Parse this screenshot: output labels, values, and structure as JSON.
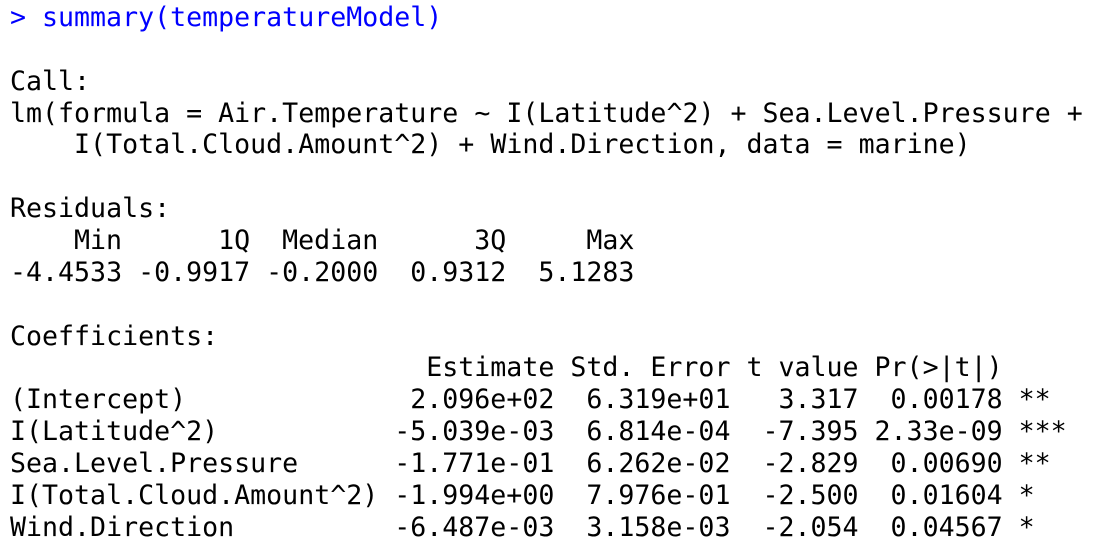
{
  "prompt": ">",
  "command": "summary(temperatureModel)",
  "call": {
    "label": "Call:",
    "lines": [
      "lm(formula = Air.Temperature ~ I(Latitude^2) + Sea.Level.Pressure + ",
      "    I(Total.Cloud.Amount^2) + Wind.Direction, data = marine)"
    ]
  },
  "residuals": {
    "label": "Residuals:",
    "headers": [
      "Min",
      "1Q",
      "Median",
      "3Q",
      "Max"
    ],
    "values": [
      "-4.4533",
      "-0.9917",
      "-0.2000",
      "0.9312",
      "5.1283"
    ]
  },
  "coefficients": {
    "label": "Coefficients:",
    "headers": [
      "Estimate",
      "Std. Error",
      "t value",
      "Pr(>|t|)"
    ],
    "rows": [
      {
        "name": "(Intercept)",
        "cells": [
          "2.096e+02",
          "6.319e+01",
          "3.317",
          "0.00178"
        ],
        "signif": "**"
      },
      {
        "name": "I(Latitude^2)",
        "cells": [
          "-5.039e-03",
          "6.814e-04",
          "-7.395",
          "2.33e-09"
        ],
        "signif": "***"
      },
      {
        "name": "Sea.Level.Pressure",
        "cells": [
          "-1.771e-01",
          "6.262e-02",
          "-2.829",
          "0.00690"
        ],
        "signif": "**"
      },
      {
        "name": "I(Total.Cloud.Amount^2)",
        "cells": [
          "-1.994e+00",
          "7.976e-01",
          "-2.500",
          "0.01604"
        ],
        "signif": "*"
      },
      {
        "name": "Wind.Direction",
        "cells": [
          "-6.487e-03",
          "3.158e-03",
          "-2.054",
          "0.04567"
        ],
        "signif": "*"
      }
    ]
  }
}
